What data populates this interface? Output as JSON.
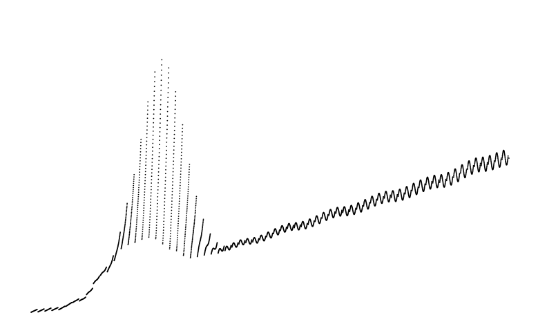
{
  "chart_data": {
    "type": "scatter",
    "title": "",
    "xlabel": "",
    "ylabel": "",
    "grid": false,
    "legend": "none",
    "axes_visible": false,
    "marker": "dot",
    "marker_color": "#000000",
    "background": "#ffffff",
    "description_of_shape": "",
    "series": [
      {
        "points_per_curve": 70,
        "curve_count": 48,
        "baseline": [
          [
            0.0,
            0.0
          ],
          [
            0.05,
            0.01
          ],
          [
            0.1,
            0.06
          ],
          [
            0.15,
            0.2
          ],
          [
            0.2,
            0.36
          ],
          [
            0.25,
            0.4
          ],
          [
            0.3,
            0.33
          ],
          [
            0.33,
            0.29
          ],
          [
            0.38,
            0.31
          ],
          [
            0.45,
            0.37
          ],
          [
            0.55,
            0.45
          ],
          [
            0.65,
            0.53
          ],
          [
            0.75,
            0.61
          ],
          [
            0.85,
            0.69
          ],
          [
            0.94,
            0.78
          ],
          [
            1.0,
            0.82
          ]
        ],
        "peak_center": 0.27,
        "peak_width": 0.045,
        "peak_height_max": 1.0,
        "ribbon_amplitude_max": 0.045
      }
    ]
  }
}
